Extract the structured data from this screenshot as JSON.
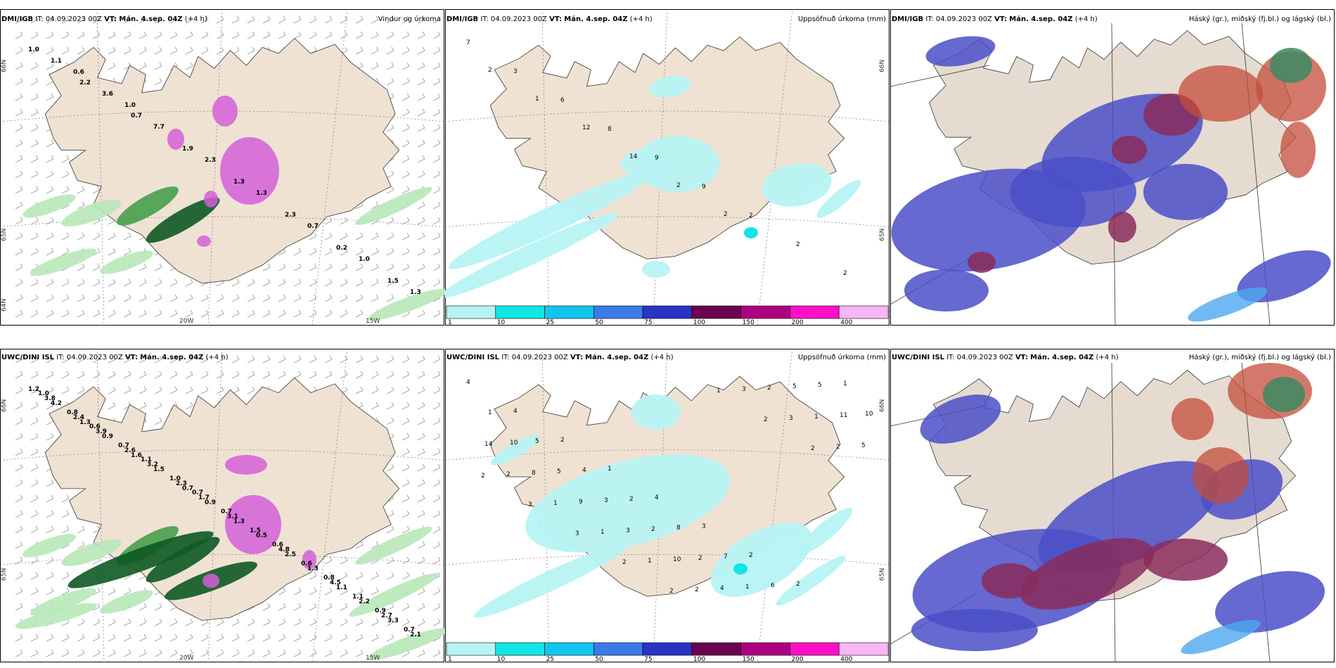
{
  "panels": [
    {
      "model": "DMI/IGB",
      "it_label": "IT:",
      "it_value": "04.09.2023 00Z",
      "vt_label": "VT:",
      "vt_value": "Mán. 4.sep. 04Z",
      "lead": "(+4 h)",
      "field_title": "Vindur og úrkoma",
      "kind": "wind",
      "grid_labels": {
        "lat_top": "66N",
        "lat_mid": "65N",
        "lat_low": "64N",
        "lon_a": "20W",
        "lon_b": "15W"
      },
      "value_labels": [
        "1.0",
        "2.2",
        "0.7",
        "1.9",
        "1.3",
        "2.3",
        "0.2",
        "1.5",
        "1.1",
        "3.6",
        "7.7",
        "2.3",
        "1.3",
        "0.7",
        "1.0",
        "1.3",
        "0.6",
        "1.0"
      ]
    },
    {
      "model": "DMI/IGB",
      "it_label": "IT:",
      "it_value": "04.09.2023 00Z",
      "vt_label": "VT:",
      "vt_value": "Mán. 4.sep. 04Z",
      "lead": "(+4 h)",
      "field_title": "Uppsöfnuð úrkoma (mm)",
      "kind": "precip",
      "grid_labels": {
        "lat_top": "66N",
        "lat_mid": "65N"
      },
      "value_labels": [
        "7",
        "3",
        "6",
        "8",
        "9",
        "9",
        "2",
        "2",
        "2",
        "2",
        "1",
        "12",
        "14",
        "2",
        "2"
      ],
      "colorbar": [
        "1",
        "10",
        "25",
        "50",
        "75",
        "100",
        "150",
        "200",
        "400"
      ]
    },
    {
      "model": "DMI/IGB",
      "it_label": "IT:",
      "it_value": "04.09.2023 00Z",
      "vt_label": "VT:",
      "vt_value": "Mán. 4.sep. 04Z",
      "lead": "(+4 h)",
      "field_title": "Háský (gr.), miðský (fj.bl.) og lágský (bl.)",
      "kind": "cloud"
    },
    {
      "model": "UWC/DINI ISL",
      "it_label": "IT:",
      "it_value": "04.09.2023 00Z",
      "vt_label": "VT:",
      "vt_value": "Mán. 4.sep. 04Z",
      "lead": "(+4 h)",
      "field_title": "",
      "kind": "wind",
      "grid_labels": {
        "lat_top": "66N",
        "lat_mid": "65N",
        "lon_a": "20W",
        "lon_b": "15W"
      },
      "value_labels": [
        "1.2",
        "1.3",
        "1.6",
        "0.7",
        "1.3",
        "2.5",
        "1.1",
        "3.3",
        "4.2",
        "0.9",
        "1.5",
        "0.9",
        "0.5",
        "1.3",
        "2.2",
        "2.1",
        "2.4",
        "2.6",
        "2.3",
        "3.1",
        "4.8",
        "4.5",
        "2.7",
        "3.8",
        "3.9",
        "3.2",
        "1.7",
        "1.5",
        "0.6",
        "1.1",
        "0.7",
        "0.8",
        "0.7",
        "1.0",
        "0.7",
        "0.6",
        "0.8",
        "0.9",
        "1.0",
        "0.6",
        "1.1",
        "0.7"
      ]
    },
    {
      "model": "UWC/DINI ISL",
      "it_label": "IT:",
      "it_value": "04.09.2023 00Z",
      "vt_label": "VT:",
      "vt_value": "Mán. 4.sep. 04Z",
      "lead": "(+4 h)",
      "field_title": "Uppsöfnuð úrkoma (mm)",
      "kind": "precip",
      "grid_labels": {
        "lat_top": "66N",
        "lat_mid": "65N"
      },
      "value_labels": [
        "4",
        "4",
        "2",
        "1",
        "4",
        "3",
        "2",
        "2",
        "1",
        "1",
        "5",
        "4",
        "2",
        "8",
        "7",
        "6",
        "5",
        "10",
        "10",
        "5",
        "3",
        "2",
        "2",
        "1",
        "5",
        "11",
        "14",
        "8",
        "9",
        "3",
        "10",
        "4",
        "2",
        "1",
        "5",
        "2",
        "1",
        "1",
        "1",
        "2",
        "3",
        "3",
        "2",
        "2",
        "3",
        "3",
        "2",
        "2",
        "1",
        "2",
        "2"
      ],
      "colorbar": [
        "1",
        "10",
        "25",
        "50",
        "75",
        "100",
        "150",
        "200",
        "400"
      ]
    },
    {
      "model": "UWC/DINI ISL",
      "it_label": "IT:",
      "it_value": "04.09.2023 00Z",
      "vt_label": "VT:",
      "vt_value": "Mán. 4.sep. 04Z",
      "lead": "(+4 h)",
      "field_title": "Háský (gr.), miðský (fj.bl.) og lágský (bl.)",
      "kind": "cloud"
    }
  ],
  "colors": {
    "land": "#efe2d3",
    "land_grey": "#e6dbd0",
    "precip_light": "#b7f3f3",
    "precip_cyan": "#12e5e5",
    "green_light": "#b8e8b8",
    "green_mid": "#46a04c",
    "green_dark": "#0d5a22",
    "magenta": "#d35fd8",
    "magenta_light": "#eaa8ee",
    "low_cloud": "#4a4fc8",
    "low_cloud_light": "#4da8f0",
    "mid_cloud": "#8a2c5c",
    "high_cloud": "#c44c3a",
    "high_green": "#3a8a60"
  },
  "colorbar_colors": [
    "#b7f3f3",
    "#12e5e5",
    "#11c6ec",
    "#3c7ae8",
    "#2933c4",
    "#6b0050",
    "#ad0080",
    "#ff10c8",
    "#f8b6f2"
  ]
}
